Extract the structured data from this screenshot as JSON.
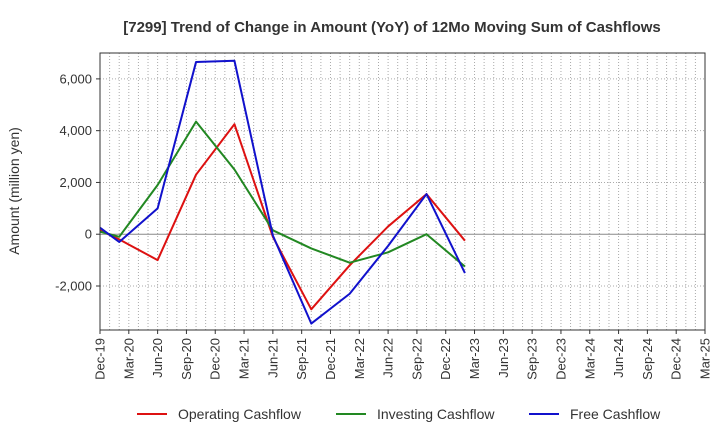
{
  "chart_data": {
    "type": "line",
    "title": "[7299]  Trend of Change in Amount (YoY) of 12Mo Moving Sum of Cashflows",
    "xlabel": "",
    "ylabel": "Amount (million yen)",
    "ylim": [
      -3700,
      7000
    ],
    "yticks": [
      -2000,
      0,
      2000,
      4000,
      6000
    ],
    "ytick_labels": [
      "-2,000",
      "0",
      "2,000",
      "4,000",
      "6,000"
    ],
    "categories": [
      "Dec-19",
      "Mar-20",
      "Jun-20",
      "Sep-20",
      "Dec-20",
      "Mar-21",
      "Jun-21",
      "Sep-21",
      "Dec-21",
      "Mar-22",
      "Jun-22",
      "Sep-22",
      "Dec-22",
      "Mar-23",
      "Jun-23",
      "Sep-23",
      "Dec-23",
      "Mar-24",
      "Jun-24",
      "Sep-24",
      "Dec-24",
      "Mar-25"
    ],
    "tick_labels": [
      "Dec-19",
      "Mar-20",
      "Jun-20",
      "Sep-20",
      "Dec-20",
      "Mar-21",
      "Jun-21",
      "Sep-21",
      "Dec-21",
      "Mar-22",
      "Jun-22",
      "Sep-22",
      "Dec-22",
      "Mar-23",
      "Jun-23",
      "Sep-23",
      "Dec-23",
      "Mar-24",
      "Jun-24",
      "Sep-24",
      "Dec-24",
      "Mar-25"
    ],
    "series": [
      {
        "name": "Operating Cashflow",
        "color": "#dd1111",
        "points": [
          [
            0,
            150
          ],
          [
            2,
            -200
          ],
          [
            6,
            -1000
          ],
          [
            10,
            2300
          ],
          [
            14,
            4250
          ],
          [
            18,
            -100
          ],
          [
            22,
            -2900
          ],
          [
            26,
            -1200
          ],
          [
            30,
            300
          ],
          [
            34,
            1550
          ],
          [
            38,
            -250
          ]
        ]
      },
      {
        "name": "Investing Cashflow",
        "color": "#228822",
        "points": [
          [
            0,
            100
          ],
          [
            2,
            -100
          ],
          [
            6,
            1900
          ],
          [
            10,
            4350
          ],
          [
            14,
            2500
          ],
          [
            18,
            150
          ],
          [
            22,
            -550
          ],
          [
            26,
            -1100
          ],
          [
            30,
            -700
          ],
          [
            34,
            0
          ],
          [
            38,
            -1250
          ]
        ]
      },
      {
        "name": "Free Cashflow",
        "color": "#1111cc",
        "points": [
          [
            0,
            250
          ],
          [
            2,
            -300
          ],
          [
            6,
            1000
          ],
          [
            10,
            6650
          ],
          [
            14,
            6700
          ],
          [
            18,
            -50
          ],
          [
            22,
            -3450
          ],
          [
            26,
            -2300
          ],
          [
            30,
            -450
          ],
          [
            34,
            1550
          ],
          [
            38,
            -1500
          ]
        ]
      }
    ],
    "grid": true,
    "legend_position": "bottom"
  }
}
